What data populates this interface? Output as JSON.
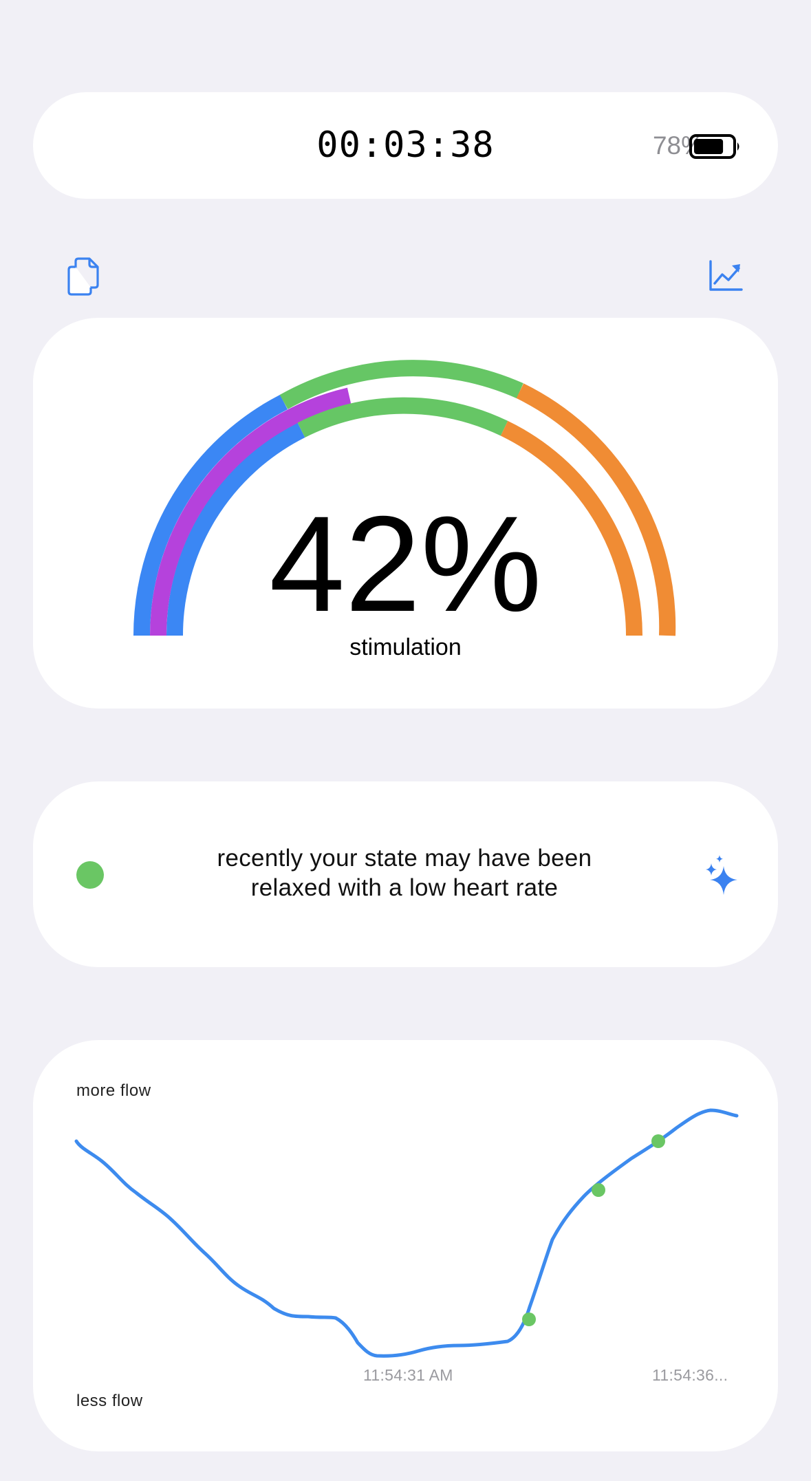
{
  "status_bar": {
    "timer": "00:03:38",
    "battery_percent": "78%",
    "battery_level": 0.78,
    "battery_icon": "battery-icon"
  },
  "toolbar": {
    "left_icon": "copy-documents-icon",
    "right_icon": "line-chart-trend-icon",
    "accent_color": "#3B82F0"
  },
  "gauge": {
    "value": "42%",
    "label": "stimulation",
    "colors": {
      "blue": "#3B87F4",
      "purple": "#B542DC",
      "green": "#66C665",
      "orange": "#F08C34"
    }
  },
  "state": {
    "indicator_color": "#6AC664",
    "line1": "recently your state may have been",
    "line2": "relaxed with a low heart rate",
    "icon": "sparkles-icon"
  },
  "flow_chart": {
    "top_label": "more flow",
    "bottom_label": "less flow",
    "x_ticks": [
      "11:54:31 AM",
      "11:54:36..."
    ],
    "line_color": "#3D8BEE",
    "marker_color": "#6AC664"
  }
}
